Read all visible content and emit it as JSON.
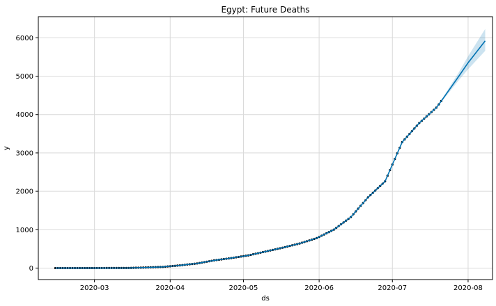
{
  "chart_data": {
    "type": "line",
    "title": "Egypt: Future Deaths",
    "xlabel": "ds",
    "ylabel": "y",
    "grid": true,
    "xlim": [
      "2020-02-07",
      "2020-08-11"
    ],
    "ylim": [
      -300,
      6550
    ],
    "x_ticks": [
      "2020-03",
      "2020-04",
      "2020-05",
      "2020-06",
      "2020-07",
      "2020-08"
    ],
    "y_ticks": [
      0,
      1000,
      2000,
      3000,
      4000,
      5000,
      6000
    ],
    "observed": {
      "x": [
        "2020-02-14",
        "2020-03-01",
        "2020-03-15",
        "2020-03-22",
        "2020-03-29",
        "2020-04-05",
        "2020-04-12",
        "2020-04-19",
        "2020-04-26",
        "2020-05-03",
        "2020-05-10",
        "2020-05-17",
        "2020-05-24",
        "2020-05-31",
        "2020-06-07",
        "2020-06-14",
        "2020-06-21",
        "2020-06-28",
        "2020-07-05",
        "2020-07-12",
        "2020-07-19",
        "2020-07-21"
      ],
      "y": [
        0,
        0,
        2,
        15,
        30,
        70,
        120,
        200,
        260,
        330,
        430,
        530,
        640,
        780,
        1000,
        1330,
        1840,
        2260,
        3280,
        3780,
        4180,
        4350
      ]
    },
    "forecast": {
      "x": [
        "2020-02-14",
        "2020-03-01",
        "2020-03-15",
        "2020-03-22",
        "2020-03-29",
        "2020-04-05",
        "2020-04-12",
        "2020-04-19",
        "2020-04-26",
        "2020-05-03",
        "2020-05-10",
        "2020-05-17",
        "2020-05-24",
        "2020-05-31",
        "2020-06-07",
        "2020-06-14",
        "2020-06-21",
        "2020-06-28",
        "2020-07-05",
        "2020-07-12",
        "2020-07-19",
        "2020-07-21",
        "2020-07-28",
        "2020-08-01",
        "2020-08-08"
      ],
      "yhat": [
        0,
        0,
        2,
        15,
        30,
        70,
        120,
        200,
        260,
        330,
        430,
        530,
        640,
        780,
        1000,
        1330,
        1840,
        2260,
        3280,
        3780,
        4180,
        4350,
        4980,
        5350,
        5920
      ],
      "yhat_lower": [
        0,
        0,
        2,
        15,
        30,
        70,
        120,
        200,
        260,
        330,
        430,
        530,
        640,
        780,
        1000,
        1330,
        1840,
        2260,
        3280,
        3780,
        4180,
        4320,
        4880,
        5180,
        5660
      ],
      "yhat_upper": [
        0,
        0,
        2,
        15,
        30,
        70,
        120,
        200,
        260,
        330,
        430,
        530,
        640,
        780,
        1000,
        1330,
        1840,
        2260,
        3280,
        3780,
        4180,
        4380,
        5080,
        5520,
        6230
      ]
    },
    "colors": {
      "forecast_line": "#0072B2",
      "interval_fill": "#0072B2",
      "points": "#000000",
      "grid": "#d9d9d9",
      "axes": "#000000"
    }
  }
}
